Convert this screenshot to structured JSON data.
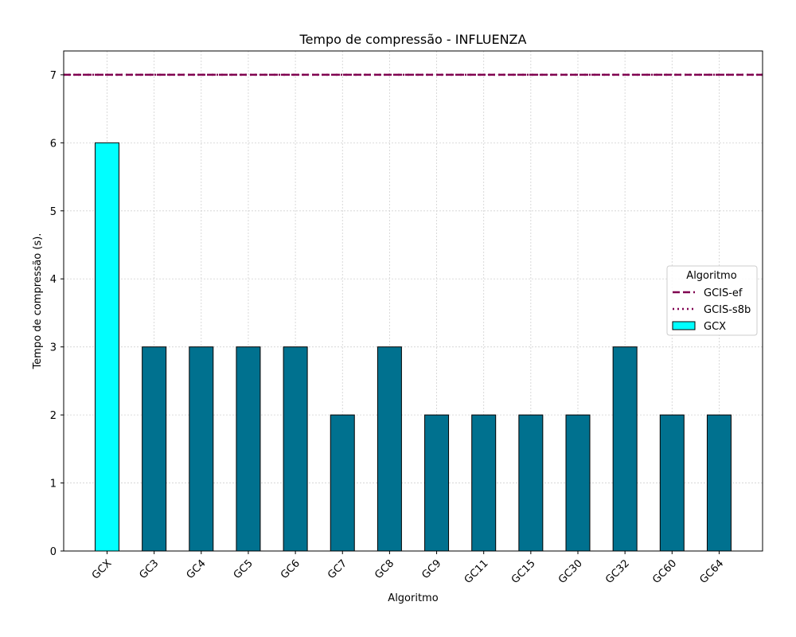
{
  "chart_data": {
    "type": "bar",
    "title": "Tempo de compressão -  INFLUENZA",
    "xlabel": "Algoritmo",
    "ylabel": "Tempo de compressão (s).",
    "categories": [
      "GCX",
      "GC3",
      "GC4",
      "GC5",
      "GC6",
      "GC7",
      "GC8",
      "GC9",
      "GC11",
      "GC15",
      "GC30",
      "GC32",
      "GC60",
      "GC64"
    ],
    "values": [
      6,
      3,
      3,
      3,
      3,
      2,
      3,
      2,
      2,
      2,
      2,
      3,
      2,
      2
    ],
    "bar_colors": [
      "#00ffff",
      "#00718f",
      "#00718f",
      "#00718f",
      "#00718f",
      "#00718f",
      "#00718f",
      "#00718f",
      "#00718f",
      "#00718f",
      "#00718f",
      "#00718f",
      "#00718f",
      "#00718f"
    ],
    "ylim": [
      0,
      7.35
    ],
    "yticks": [
      0,
      1,
      2,
      3,
      4,
      5,
      6,
      7
    ],
    "grid": true,
    "reference_lines": [
      {
        "name": "GCIS-ef",
        "value": 7,
        "style": "dashed",
        "color": "#800050"
      },
      {
        "name": "GCIS-s8b",
        "value": 7,
        "style": "dotted",
        "color": "#800050"
      }
    ],
    "legend": {
      "title": "Algoritmo",
      "placement": "center-right",
      "entries": [
        {
          "label": "GCIS-ef",
          "kind": "dashed-line",
          "color": "#800050"
        },
        {
          "label": "GCIS-s8b",
          "kind": "dotted-line",
          "color": "#800050"
        },
        {
          "label": "GCX",
          "kind": "patch",
          "color": "#00ffff"
        }
      ]
    }
  }
}
